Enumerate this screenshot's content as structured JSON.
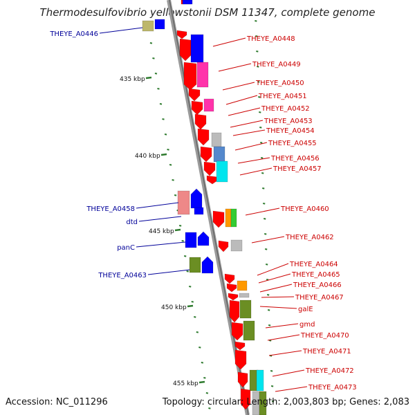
{
  "title": "Thermodesulfovibrio yellowstonii DSM 11347, complete genome",
  "footer": {
    "accession": "Accession: NC_011296",
    "summary": "Topology: circular; Length: 2,003,803 bp; Genes: 2,083"
  },
  "colors": {
    "backbone": "#808080",
    "forward_label": "#cc0000",
    "reverse_label": "#000099",
    "tick": "#2d7a2d",
    "red": "#ff0000",
    "blue": "#0000ff",
    "magenta": "#ff33aa",
    "gray": "#bbbbbb",
    "cyan": "#00e5ee",
    "steel": "#5588cc",
    "olive": "#6b8e23",
    "orange": "#ff9900",
    "green": "#33cc33",
    "pink": "#ee8888",
    "khaki": "#bdb76b"
  },
  "scale_labels": [
    {
      "text": "435 kbp"
    },
    {
      "text": "440 kbp"
    },
    {
      "text": "445 kbp"
    },
    {
      "text": "450 kbp"
    },
    {
      "text": "455 kbp"
    }
  ],
  "forward_labels": [
    {
      "text": "THEYE_A0448"
    },
    {
      "text": "THEYE_A0449"
    },
    {
      "text": "THEYE_A0450"
    },
    {
      "text": "THEYE_A0451"
    },
    {
      "text": "THEYE_A0452"
    },
    {
      "text": "THEYE_A0453"
    },
    {
      "text": "THEYE_A0454"
    },
    {
      "text": "THEYE_A0455"
    },
    {
      "text": "THEYE_A0456"
    },
    {
      "text": "THEYE_A0457"
    },
    {
      "text": "THEYE_A0460"
    },
    {
      "text": "THEYE_A0462"
    },
    {
      "text": "THEYE_A0464"
    },
    {
      "text": "THEYE_A0465"
    },
    {
      "text": "THEYE_A0466"
    },
    {
      "text": "THEYE_A0467"
    },
    {
      "text": "galE"
    },
    {
      "text": "gmd"
    },
    {
      "text": "THEYE_A0470"
    },
    {
      "text": "THEYE_A0471"
    },
    {
      "text": "THEYE_A0472"
    },
    {
      "text": "THEYE_A0473"
    }
  ],
  "reverse_labels": [
    {
      "text": "THEYE_A0446"
    },
    {
      "text": "THEYE_A0458"
    },
    {
      "text": "dtd"
    },
    {
      "text": "panC"
    },
    {
      "text": "THEYE_A0463"
    }
  ]
}
